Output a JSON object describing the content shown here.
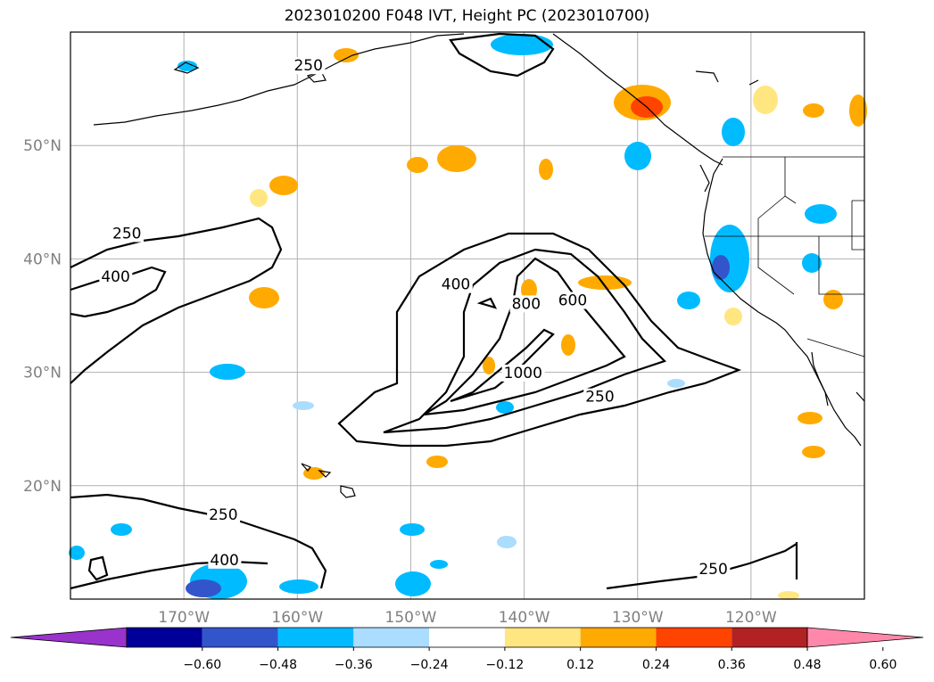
{
  "title": "2023010200 F048 IVT, Height PC (2023010700)",
  "map": {
    "lon_range": [
      -180,
      -110
    ],
    "lat_range": [
      10,
      60
    ],
    "gridlines": true,
    "lat_ticks": [
      {
        "value": 20,
        "label": "20°N"
      },
      {
        "value": 30,
        "label": "30°N"
      },
      {
        "value": 40,
        "label": "40°N"
      },
      {
        "value": 50,
        "label": "50°N"
      }
    ],
    "lon_ticks": [
      {
        "value": -170,
        "label": "170°W"
      },
      {
        "value": -160,
        "label": "160°W"
      },
      {
        "value": -150,
        "label": "150°W"
      },
      {
        "value": -140,
        "label": "140°W"
      },
      {
        "value": -130,
        "label": "130°W"
      },
      {
        "value": -120,
        "label": "120°W"
      }
    ],
    "contour_labels": [
      {
        "text": "250",
        "lon": -160.3,
        "lat": 56.6
      },
      {
        "text": "250",
        "lon": -176.3,
        "lat": 41.8
      },
      {
        "text": "400",
        "lon": -177.3,
        "lat": 38.0
      },
      {
        "text": "400",
        "lon": -147.3,
        "lat": 37.3
      },
      {
        "text": "800",
        "lon": -141.1,
        "lat": 35.6
      },
      {
        "text": "600",
        "lon": -137.0,
        "lat": 35.9
      },
      {
        "text": "1000",
        "lon": -141.8,
        "lat": 29.5
      },
      {
        "text": "250",
        "lon": -134.6,
        "lat": 27.4
      },
      {
        "text": "250",
        "lon": -167.8,
        "lat": 17.0
      },
      {
        "text": "400",
        "lon": -167.7,
        "lat": 13.0
      },
      {
        "text": "250",
        "lon": -124.6,
        "lat": 12.2
      }
    ]
  },
  "colorbar": {
    "colors": [
      "#9933cc",
      "#000099",
      "#3355cc",
      "#00bbff",
      "#aaddff",
      "#ffffff",
      "#ffe680",
      "#ffaa00",
      "#ff4400",
      "#b22222",
      "#ff88aa"
    ],
    "ticks": [
      "−0.60",
      "−0.48",
      "−0.36",
      "−0.24",
      "−0.12",
      "0.12",
      "0.24",
      "0.36",
      "0.48",
      "0.60"
    ],
    "extend": "both"
  },
  "colors": {
    "grid": "#b0b0b0",
    "contour": "#000000",
    "coast": "#000000"
  }
}
